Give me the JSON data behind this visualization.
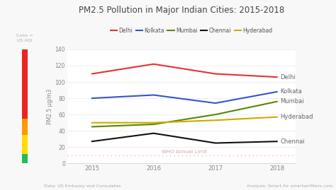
{
  "title": "PM2.5 Pollution in Major Indian Cities: 2015-2018",
  "ylabel": "PM2.5 μg/m3",
  "years": [
    2015,
    2016,
    2017,
    2018
  ],
  "series": {
    "Delhi": {
      "values": [
        110,
        122,
        110,
        106
      ],
      "color": "#e63232"
    },
    "Kolkata": {
      "values": [
        80,
        84,
        74,
        88
      ],
      "color": "#3355cc"
    },
    "Mumbai": {
      "values": [
        45,
        48,
        60,
        76
      ],
      "color": "#558800"
    },
    "Chennai": {
      "values": [
        27,
        37,
        25,
        27
      ],
      "color": "#111111"
    },
    "Hyderabad": {
      "values": [
        50,
        50,
        53,
        57
      ],
      "color": "#ccaa00"
    }
  },
  "who_limit": 10,
  "who_label": "WHO Annual Limit",
  "ylim": [
    0,
    140
  ],
  "yticks": [
    0,
    20,
    40,
    60,
    80,
    100,
    120,
    140
  ],
  "bg_color": "#f8f8f8",
  "plot_bg": "#ffffff",
  "aqi_colors": [
    {
      "range": [
        0,
        12
      ],
      "color": "#22bb55"
    },
    {
      "range": [
        12,
        35
      ],
      "color": "#ffdd00"
    },
    {
      "range": [
        35,
        55
      ],
      "color": "#ff9900"
    },
    {
      "range": [
        55,
        150
      ],
      "color": "#ee2222"
    }
  ],
  "footer_left": "Data: US Embassy and Consulates",
  "footer_right": "Analysis: Smart Air smartairfilters.com",
  "legend_order": [
    "Delhi",
    "Kolkata",
    "Mumbai",
    "Chennai",
    "Hyderabad"
  ],
  "color_label": "Color =\nUS AQI"
}
